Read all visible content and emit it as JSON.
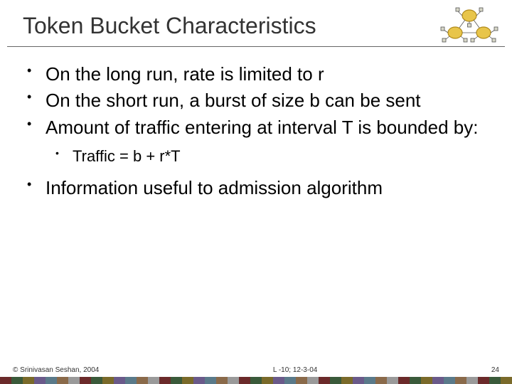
{
  "title": "Token Bucket Characteristics",
  "bullets": [
    {
      "text": "On the long run, rate is limited to r"
    },
    {
      "text": "On the short run, a burst of size b can be sent"
    },
    {
      "text": "Amount of traffic entering at interval T is bounded by:"
    },
    {
      "text": "Information useful to admission algorithm"
    }
  ],
  "sub_bullet": "Traffic = b + r*T",
  "footer": {
    "copyright": "© Srinivasan Seshan, 2004",
    "center": "L -10; 12-3-04",
    "page": "24"
  },
  "colorbar": {
    "colors": [
      "#6b2a2a",
      "#3a5a3a",
      "#7a6a2a",
      "#6a5a8a",
      "#5a7a8a",
      "#8a6a4a",
      "#9a9a9a",
      "#6b2a2a",
      "#3a5a3a",
      "#7a6a2a",
      "#6a5a8a",
      "#5a7a8a",
      "#8a6a4a",
      "#9a9a9a",
      "#6b2a2a",
      "#3a5a3a",
      "#7a6a2a",
      "#6a5a8a",
      "#5a7a8a",
      "#8a6a4a",
      "#9a9a9a",
      "#6b2a2a",
      "#3a5a3a",
      "#7a6a2a",
      "#6a5a8a",
      "#5a7a8a",
      "#8a6a4a",
      "#9a9a9a",
      "#6b2a2a",
      "#3a5a3a",
      "#7a6a2a",
      "#6a5a8a",
      "#5a7a8a",
      "#8a6a4a",
      "#9a9a9a",
      "#6b2a2a",
      "#3a5a3a",
      "#7a6a2a",
      "#6a5a8a",
      "#5a7a8a",
      "#8a6a4a",
      "#9a9a9a",
      "#6b2a2a",
      "#3a5a3a",
      "#7a6a2a"
    ]
  },
  "logo": {
    "ring_fill": "#e8c54a",
    "ring_stroke": "#b08a1a",
    "node_fill": "#d8d8c8",
    "node_stroke": "#555"
  }
}
